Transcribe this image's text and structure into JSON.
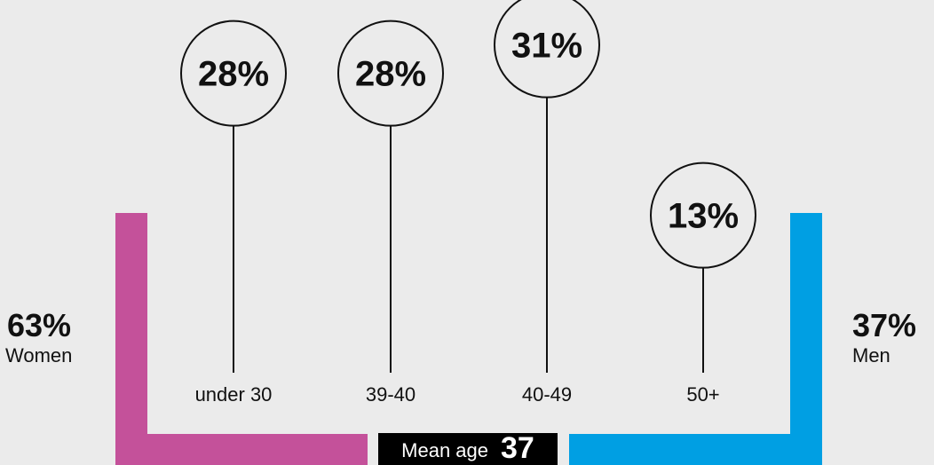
{
  "chart_data": {
    "type": "lollipop",
    "categories": [
      "under 30",
      "39-40",
      "40-49",
      "50+"
    ],
    "values": [
      28,
      28,
      31,
      13
    ],
    "value_labels": [
      "28%",
      "28%",
      "31%",
      "13%"
    ],
    "gender": {
      "women": {
        "value": 63,
        "pct_label": "63%",
        "label": "Women",
        "color": "#c4519a"
      },
      "men": {
        "value": 37,
        "pct_label": "37%",
        "label": "Men",
        "color": "#009fe3"
      }
    },
    "mean_age": {
      "label": "Mean age",
      "value": "37"
    }
  }
}
